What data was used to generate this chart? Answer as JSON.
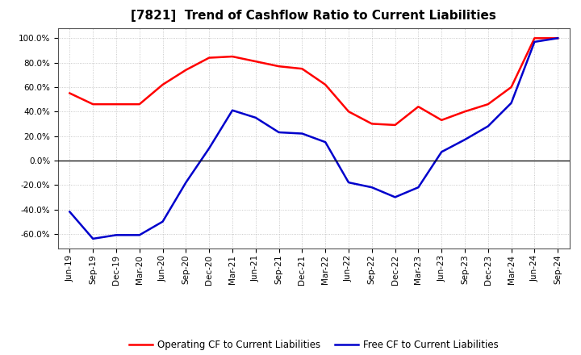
{
  "title": "[7821]  Trend of Cashflow Ratio to Current Liabilities",
  "x_labels": [
    "Jun-19",
    "Sep-19",
    "Dec-19",
    "Mar-20",
    "Jun-20",
    "Sep-20",
    "Dec-20",
    "Mar-21",
    "Jun-21",
    "Sep-21",
    "Dec-21",
    "Mar-22",
    "Jun-22",
    "Sep-22",
    "Dec-22",
    "Mar-23",
    "Jun-23",
    "Sep-23",
    "Dec-23",
    "Mar-24",
    "Jun-24",
    "Sep-24"
  ],
  "operating_cf": [
    0.55,
    0.46,
    0.46,
    0.46,
    0.62,
    0.74,
    0.84,
    0.85,
    0.81,
    0.77,
    0.75,
    0.62,
    0.4,
    0.3,
    0.29,
    0.44,
    0.33,
    0.4,
    0.46,
    0.6,
    1.0,
    1.0
  ],
  "free_cf": [
    -0.42,
    -0.64,
    -0.61,
    -0.61,
    -0.5,
    -0.18,
    0.1,
    0.41,
    0.35,
    0.23,
    0.22,
    0.15,
    -0.18,
    -0.22,
    -0.3,
    -0.22,
    0.07,
    0.17,
    0.28,
    0.47,
    0.97,
    1.0
  ],
  "operating_color": "#ff0000",
  "free_color": "#0000cc",
  "ylim": [
    -0.72,
    1.08
  ],
  "yticks": [
    -0.6,
    -0.4,
    -0.2,
    0.0,
    0.2,
    0.4,
    0.6,
    0.8,
    1.0
  ],
  "legend_operating": "Operating CF to Current Liabilities",
  "legend_free": "Free CF to Current Liabilities",
  "bg_color": "#ffffff",
  "plot_bg_color": "#ffffff",
  "grid_color": "#bbbbbb",
  "title_fontsize": 11,
  "tick_fontsize": 7.5,
  "legend_fontsize": 8.5
}
